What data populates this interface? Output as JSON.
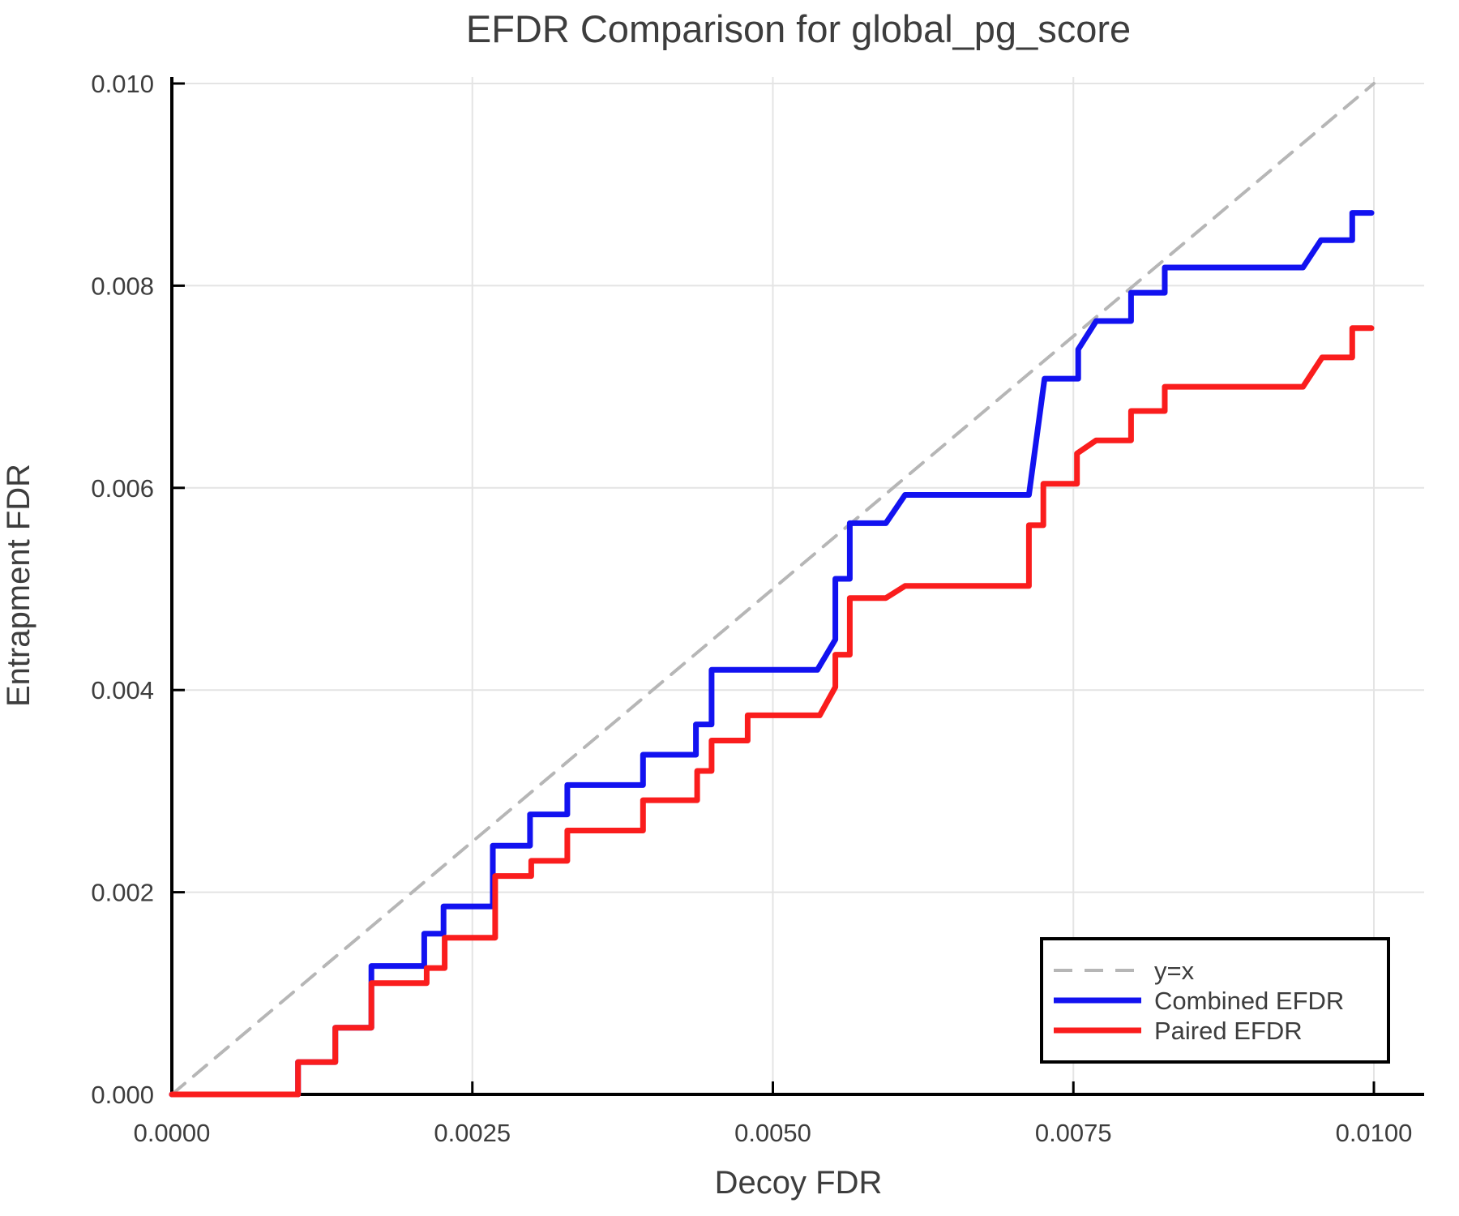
{
  "figure": {
    "title": "EFDR Comparison for global_pg_score",
    "xlabel": "Decoy FDR",
    "ylabel": "Entrapment FDR"
  },
  "chart_data": {
    "type": "line",
    "title": "EFDR Comparison for global_pg_score",
    "xlabel": "Decoy FDR",
    "ylabel": "Entrapment FDR",
    "xlim": [
      0,
      0.01042
    ],
    "ylim": [
      0,
      0.01006
    ],
    "grid": true,
    "grid_color": "#e4e4e4",
    "spine_color": "#000000",
    "text_color": "#3d3d3d",
    "xticks": {
      "values": [
        0,
        0.0025,
        0.005,
        0.0075,
        0.01
      ],
      "labels": [
        "0.0000",
        "0.0025",
        "0.0050",
        "0.0075",
        "0.0100"
      ]
    },
    "yticks": {
      "values": [
        0,
        0.002,
        0.004,
        0.006,
        0.008,
        0.01
      ],
      "labels": [
        "0.000",
        "0.002",
        "0.004",
        "0.006",
        "0.008",
        "0.010"
      ]
    },
    "legend": {
      "position": "bottom-right",
      "entries": [
        {
          "label": "y=x",
          "color": "#b6b6b6",
          "dash": true,
          "width": 4
        },
        {
          "label": "Combined EFDR",
          "color": "#1212f0",
          "dash": false,
          "width": 7
        },
        {
          "label": "Paired EFDR",
          "color": "#fa1d1d",
          "dash": false,
          "width": 7
        }
      ]
    },
    "series": [
      {
        "name": "y=x",
        "color": "#b6b6b6",
        "width": 4,
        "dash": [
          21,
          14
        ],
        "points": [
          [
            0,
            0
          ],
          [
            0.01,
            0.01
          ]
        ]
      },
      {
        "name": "Combined EFDR",
        "color": "#1212f0",
        "width": 7,
        "dash": null,
        "points": [
          [
            0.0,
            0.0
          ],
          [
            0.00105,
            0.0
          ],
          [
            0.00105,
            0.00032
          ],
          [
            0.00136,
            0.00032
          ],
          [
            0.00136,
            0.00066
          ],
          [
            0.00166,
            0.00066
          ],
          [
            0.00166,
            0.00127
          ],
          [
            0.0021,
            0.00127
          ],
          [
            0.0021,
            0.00159
          ],
          [
            0.00226,
            0.00159
          ],
          [
            0.00226,
            0.00186
          ],
          [
            0.00267,
            0.00186
          ],
          [
            0.00267,
            0.00246
          ],
          [
            0.00298,
            0.00246
          ],
          [
            0.00298,
            0.00277
          ],
          [
            0.00329,
            0.00277
          ],
          [
            0.00329,
            0.00306
          ],
          [
            0.00392,
            0.00306
          ],
          [
            0.00392,
            0.00336
          ],
          [
            0.00436,
            0.00336
          ],
          [
            0.00436,
            0.00366
          ],
          [
            0.00449,
            0.00366
          ],
          [
            0.00449,
            0.0042
          ],
          [
            0.00537,
            0.0042
          ],
          [
            0.00552,
            0.0045
          ],
          [
            0.00552,
            0.0051
          ],
          [
            0.00564,
            0.0051
          ],
          [
            0.00564,
            0.00565
          ],
          [
            0.00594,
            0.00565
          ],
          [
            0.0061,
            0.00593
          ],
          [
            0.00713,
            0.00593
          ],
          [
            0.00726,
            0.00708
          ],
          [
            0.00754,
            0.00708
          ],
          [
            0.00754,
            0.00737
          ],
          [
            0.00769,
            0.00765
          ],
          [
            0.00798,
            0.00765
          ],
          [
            0.00798,
            0.00793
          ],
          [
            0.00826,
            0.00793
          ],
          [
            0.00826,
            0.00818
          ],
          [
            0.00941,
            0.00818
          ],
          [
            0.00956,
            0.00845
          ],
          [
            0.00982,
            0.00845
          ],
          [
            0.00982,
            0.00872
          ],
          [
            0.00998,
            0.00872
          ]
        ]
      },
      {
        "name": "Paired EFDR",
        "color": "#fa1d1d",
        "width": 7,
        "dash": null,
        "points": [
          [
            0.0,
            0.0
          ],
          [
            0.00105,
            0.0
          ],
          [
            0.00105,
            0.00032
          ],
          [
            0.00136,
            0.00032
          ],
          [
            0.00136,
            0.00066
          ],
          [
            0.00166,
            0.00066
          ],
          [
            0.00166,
            0.0011
          ],
          [
            0.00212,
            0.0011
          ],
          [
            0.00212,
            0.00125
          ],
          [
            0.00227,
            0.00125
          ],
          [
            0.00227,
            0.00155
          ],
          [
            0.00269,
            0.00155
          ],
          [
            0.00269,
            0.00216
          ],
          [
            0.00299,
            0.00216
          ],
          [
            0.00299,
            0.00231
          ],
          [
            0.00329,
            0.00231
          ],
          [
            0.00329,
            0.00261
          ],
          [
            0.00392,
            0.00261
          ],
          [
            0.00392,
            0.00291
          ],
          [
            0.00437,
            0.00291
          ],
          [
            0.00437,
            0.0032
          ],
          [
            0.00449,
            0.0032
          ],
          [
            0.00449,
            0.0035
          ],
          [
            0.00479,
            0.0035
          ],
          [
            0.00479,
            0.00375
          ],
          [
            0.00539,
            0.00375
          ],
          [
            0.00552,
            0.00403
          ],
          [
            0.00552,
            0.00435
          ],
          [
            0.00564,
            0.00435
          ],
          [
            0.00564,
            0.00491
          ],
          [
            0.00594,
            0.00491
          ],
          [
            0.0061,
            0.00503
          ],
          [
            0.00713,
            0.00503
          ],
          [
            0.00713,
            0.00563
          ],
          [
            0.00725,
            0.00563
          ],
          [
            0.00725,
            0.00604
          ],
          [
            0.00753,
            0.00604
          ],
          [
            0.00753,
            0.00634
          ],
          [
            0.00769,
            0.00647
          ],
          [
            0.00798,
            0.00647
          ],
          [
            0.00798,
            0.00676
          ],
          [
            0.00826,
            0.00676
          ],
          [
            0.00826,
            0.007
          ],
          [
            0.00941,
            0.007
          ],
          [
            0.00957,
            0.00729
          ],
          [
            0.00982,
            0.00729
          ],
          [
            0.00982,
            0.00758
          ],
          [
            0.00998,
            0.00758
          ]
        ]
      }
    ]
  }
}
